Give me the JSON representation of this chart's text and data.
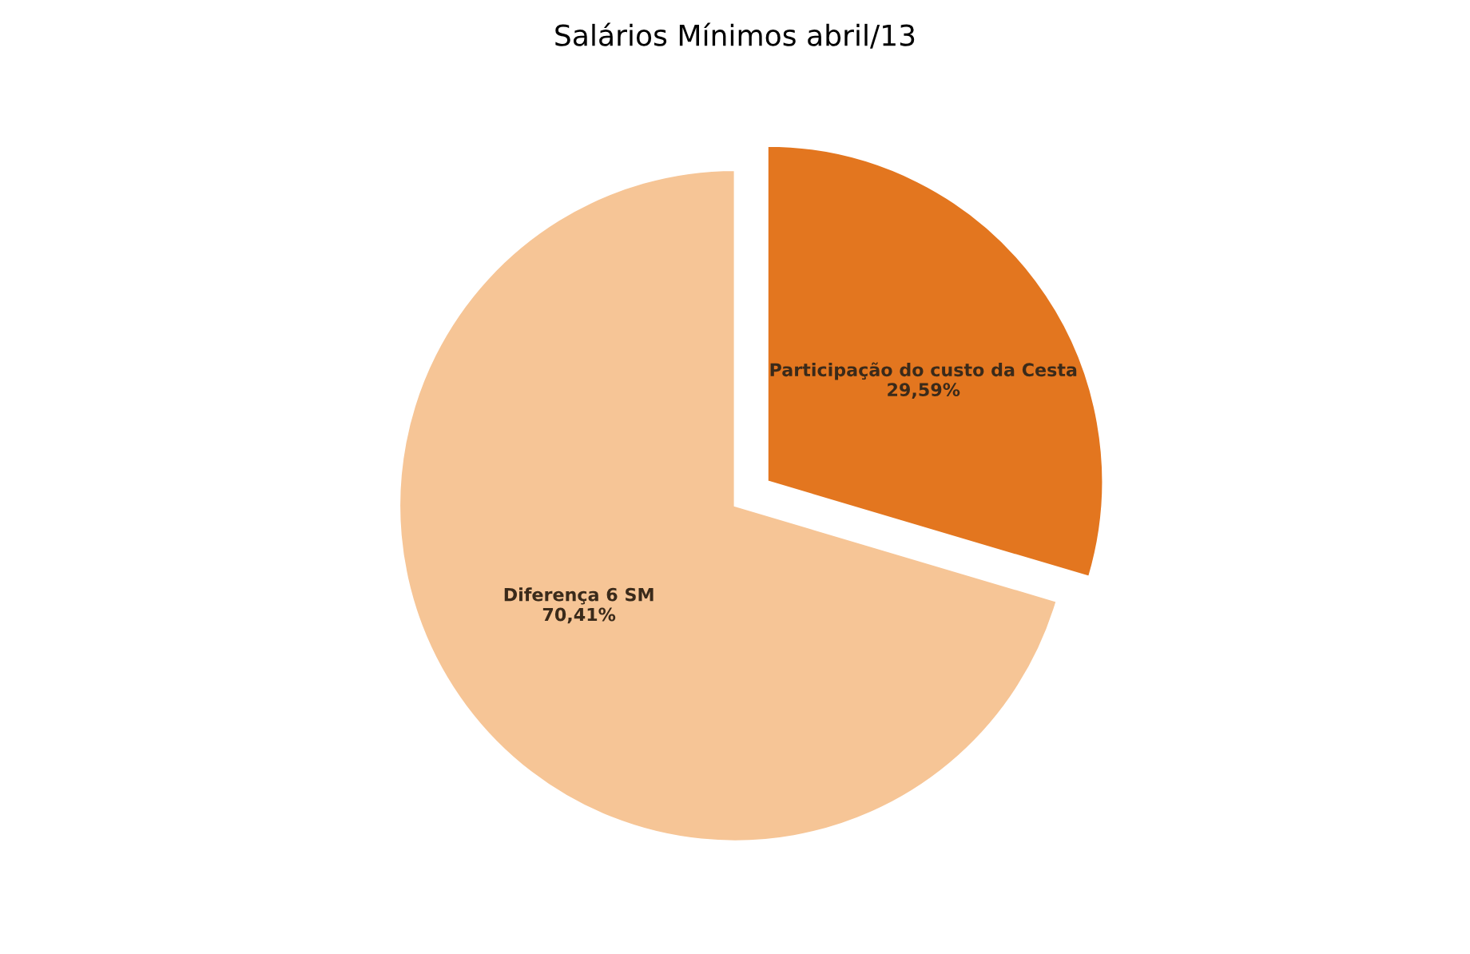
{
  "chart_data": {
    "type": "pie",
    "title": "Salários Mínimos abril/13",
    "categories": [
      "Participação do custo da Cesta",
      "Diferença 6 SM"
    ],
    "values": [
      29.59,
      70.41
    ],
    "colors": [
      "#e3761f",
      "#f6c596"
    ],
    "value_labels": [
      "29,59%",
      "70,41%"
    ]
  }
}
